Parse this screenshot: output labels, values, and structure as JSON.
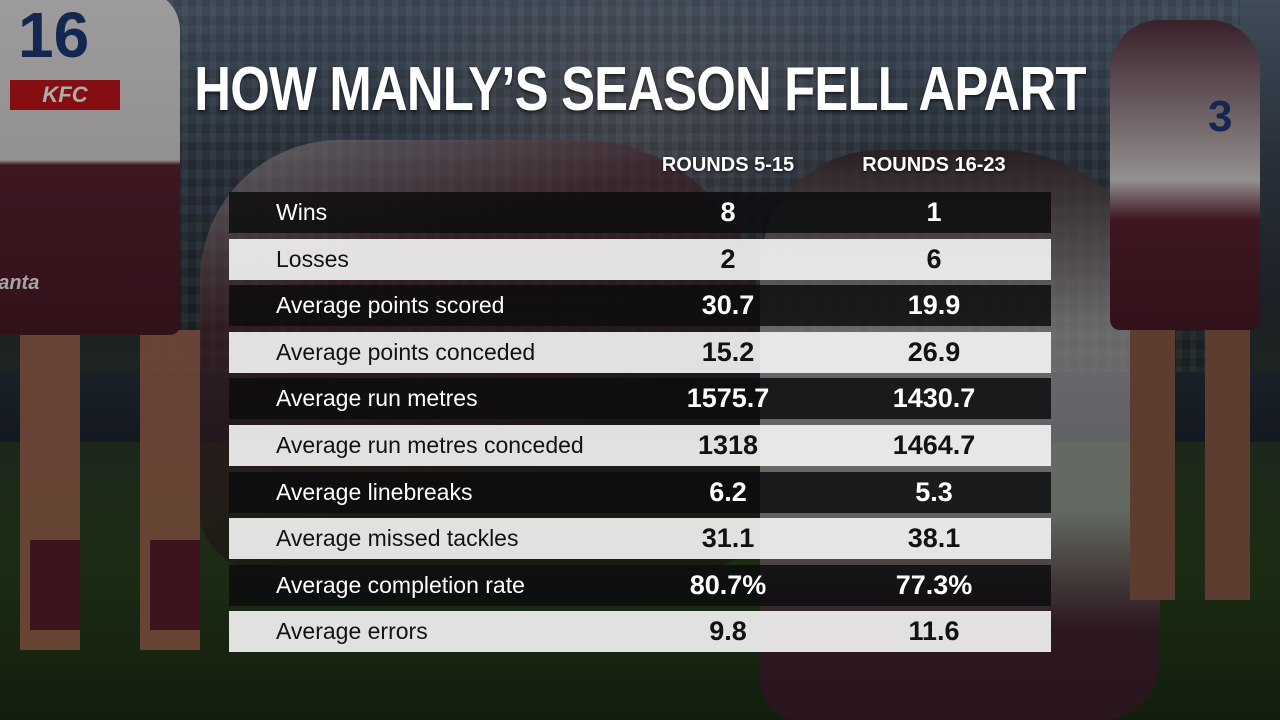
{
  "title": "HOW MANLY’S SEASON FELL APART",
  "colors": {
    "dark_row": "#0c0c0e",
    "light_row": "#f2f2f2",
    "title_text": "#ffffff"
  },
  "background_text": {
    "left_jersey_number": "16",
    "left_sponsor": "KFC",
    "left_shorts": "Zanta",
    "right_jersey_number": "3"
  },
  "chart_data": {
    "type": "table",
    "title": "HOW MANLY’S SEASON FELL APART",
    "columns": [
      "ROUNDS 5-15",
      "ROUNDS 16-23"
    ],
    "rows": [
      {
        "label": "Wins",
        "values": [
          "8",
          "1"
        ]
      },
      {
        "label": "Losses",
        "values": [
          "2",
          "6"
        ]
      },
      {
        "label": "Average points scored",
        "values": [
          "30.7",
          "19.9"
        ]
      },
      {
        "label": "Average points conceded",
        "values": [
          "15.2",
          "26.9"
        ]
      },
      {
        "label": "Average run metres",
        "values": [
          "1575.7",
          "1430.7"
        ]
      },
      {
        "label": "Average run metres conceded",
        "values": [
          "1318",
          "1464.7"
        ]
      },
      {
        "label": "Average linebreaks",
        "values": [
          "6.2",
          "5.3"
        ]
      },
      {
        "label": "Average missed tackles",
        "values": [
          "31.1",
          "38.1"
        ]
      },
      {
        "label": "Average completion rate",
        "values": [
          "80.7%",
          "77.3%"
        ]
      },
      {
        "label": "Average errors",
        "values": [
          "9.8",
          "11.6"
        ]
      }
    ]
  }
}
